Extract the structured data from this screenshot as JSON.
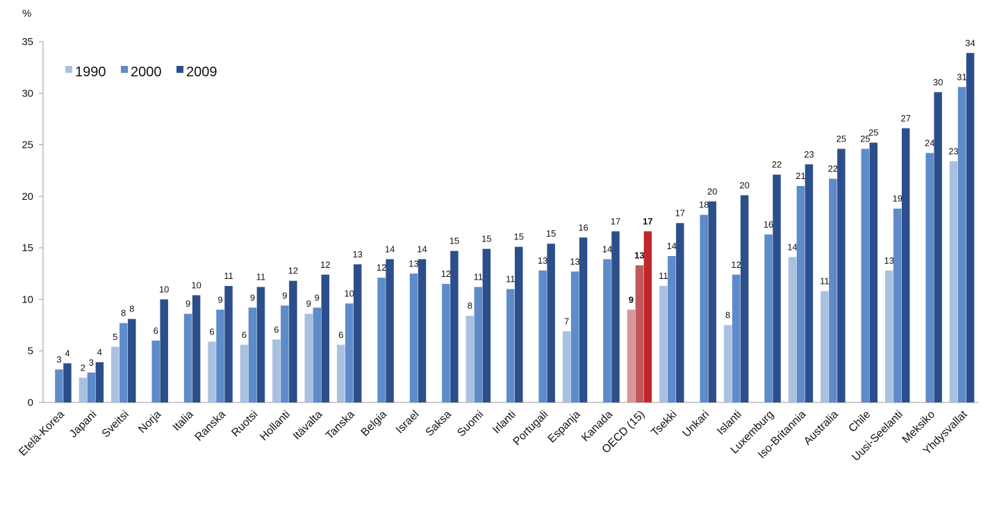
{
  "chart_data": {
    "type": "bar",
    "ylabel": "%",
    "categories": [
      "Etelä-Korea",
      "Japani",
      "Sveitsi",
      "Norja",
      "Italia",
      "Ranska",
      "Ruotsi",
      "Hollanti",
      "Itävalta",
      "Tanska",
      "Belgia",
      "Israel",
      "Saksa",
      "Suomi",
      "Irlanti",
      "Portugali",
      "Espanja",
      "Kanada",
      "OECD (15)",
      "Tsekki",
      "Unkari",
      "Islanti",
      "Luxemburg",
      "Iso-Britannia",
      "Australia",
      "Chile",
      "Uusi-Seelanti",
      "Meksiko",
      "Yhdysvallat"
    ],
    "series": [
      {
        "name": "1990",
        "color": "#a9c1e0",
        "values": [
          null,
          2.4,
          5.4,
          null,
          null,
          5.9,
          5.6,
          6.1,
          8.6,
          5.6,
          null,
          null,
          null,
          8.4,
          null,
          null,
          6.9,
          null,
          9.0,
          11.3,
          null,
          7.5,
          null,
          14.1,
          10.8,
          null,
          12.8,
          null,
          23.4
        ],
        "value_labels": [
          null,
          "2",
          "5",
          null,
          null,
          "6",
          "6",
          "6",
          "9",
          "6",
          null,
          null,
          null,
          "8",
          null,
          null,
          "7",
          null,
          "9",
          "11",
          null,
          "8",
          null,
          "14",
          "11",
          null,
          "13",
          null,
          "23"
        ]
      },
      {
        "name": "2000",
        "color": "#5e8bc9",
        "values": [
          3.2,
          2.9,
          7.7,
          6.0,
          8.6,
          9.0,
          9.2,
          9.4,
          9.2,
          9.6,
          12.1,
          12.5,
          11.5,
          11.2,
          11.0,
          12.8,
          12.7,
          13.9,
          13.3,
          14.2,
          18.2,
          12.4,
          16.3,
          21.0,
          21.7,
          24.6,
          18.8,
          24.2,
          30.6
        ],
        "value_labels": [
          "3",
          "3",
          "8",
          "6",
          "9",
          "9",
          "9",
          "9",
          "9",
          "10",
          "12",
          "13",
          "12",
          "11",
          "11",
          "13",
          "13",
          "14",
          "13",
          "14",
          "18",
          "12",
          "16",
          "21",
          "22",
          "25",
          "19",
          "24",
          "31"
        ]
      },
      {
        "name": "2009",
        "color": "#2c4f8c",
        "values": [
          3.8,
          3.9,
          8.1,
          10.0,
          10.4,
          11.3,
          11.2,
          11.8,
          12.4,
          13.4,
          13.9,
          13.9,
          14.7,
          14.9,
          15.1,
          15.4,
          16.0,
          16.6,
          16.6,
          17.4,
          19.5,
          20.1,
          22.1,
          23.1,
          24.6,
          25.2,
          26.6,
          30.1,
          33.9
        ],
        "value_labels": [
          "4",
          "4",
          "8",
          "10",
          "10",
          "11",
          "11",
          "12",
          "12",
          "13",
          "14",
          "14",
          "15",
          "15",
          "15",
          "15",
          "16",
          "17",
          "17",
          "17",
          "20",
          "20",
          "22",
          "23",
          "25",
          "25",
          "27",
          "30",
          "34"
        ]
      }
    ],
    "highlight": {
      "category": "OECD (15)",
      "colors": [
        "#d9969a",
        "#c0595c",
        "#c0272d"
      ]
    },
    "ylim": [
      0,
      35
    ],
    "yticks": [
      0,
      5,
      10,
      15,
      20,
      25,
      30,
      35
    ],
    "grid": false,
    "legend": "upper left"
  }
}
